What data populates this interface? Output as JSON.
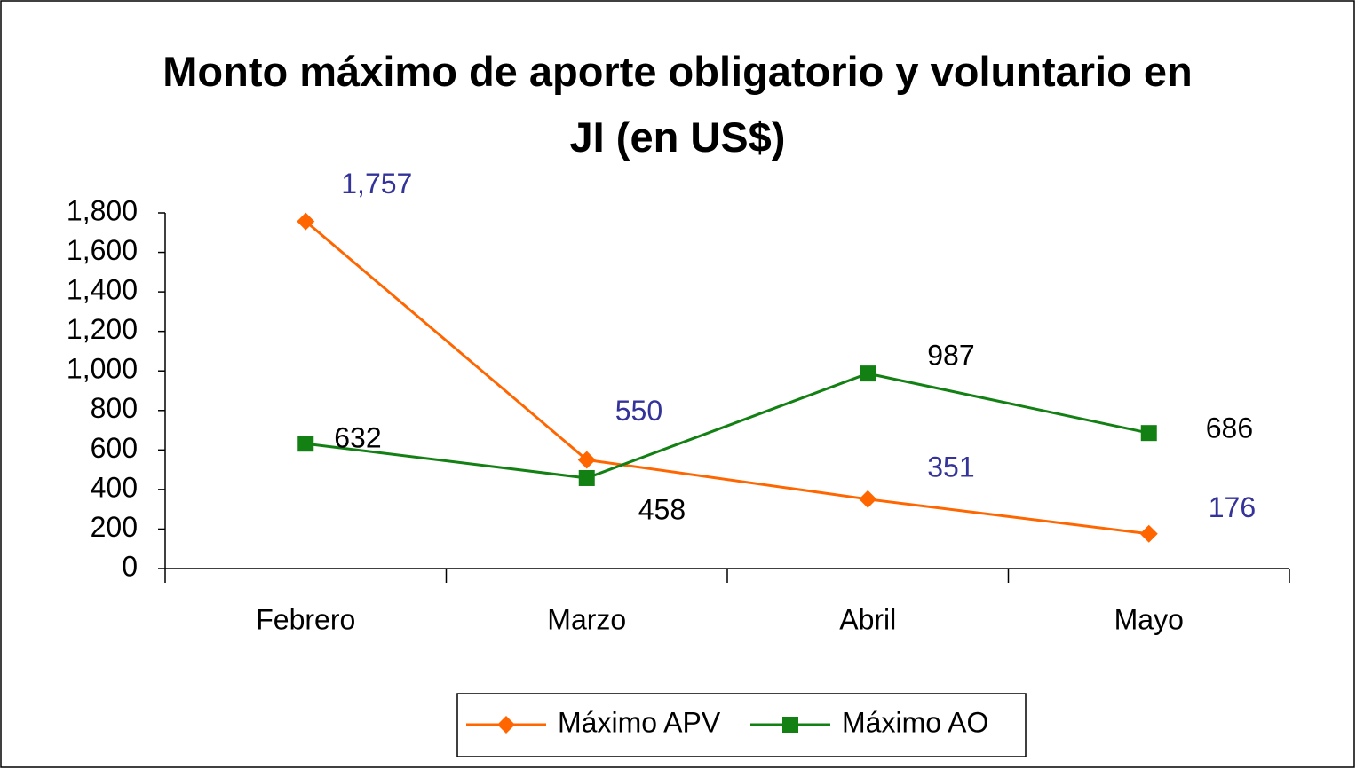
{
  "chart_data": {
    "type": "line",
    "title": "Monto máximo de aporte obligatorio y voluntario en JI (en US$)",
    "categories": [
      "Febrero",
      "Marzo",
      "Abril",
      "Mayo"
    ],
    "series": [
      {
        "name": "Máximo APV",
        "color": "#ff6600",
        "marker": "diamond",
        "label_color": "#333399",
        "values": [
          1757,
          550,
          351,
          176
        ],
        "value_labels": [
          "1,757",
          "550",
          "351",
          "176"
        ]
      },
      {
        "name": "Máximo AO",
        "color": "#138013",
        "marker": "square",
        "label_color": "#000000",
        "values": [
          632,
          458,
          987,
          686
        ]
      }
    ],
    "ylim": [
      0,
      1800
    ],
    "yticks": [
      0,
      200,
      400,
      600,
      800,
      {
        "value": 1000,
        "label": "1,000"
      },
      {
        "value": 1200,
        "label": "1,200"
      },
      {
        "value": 1400,
        "label": "1,400"
      },
      {
        "value": 1600,
        "label": "1,600"
      },
      {
        "value": 1800,
        "label": "1,800"
      }
    ],
    "legend": "bottom",
    "grid": false
  }
}
